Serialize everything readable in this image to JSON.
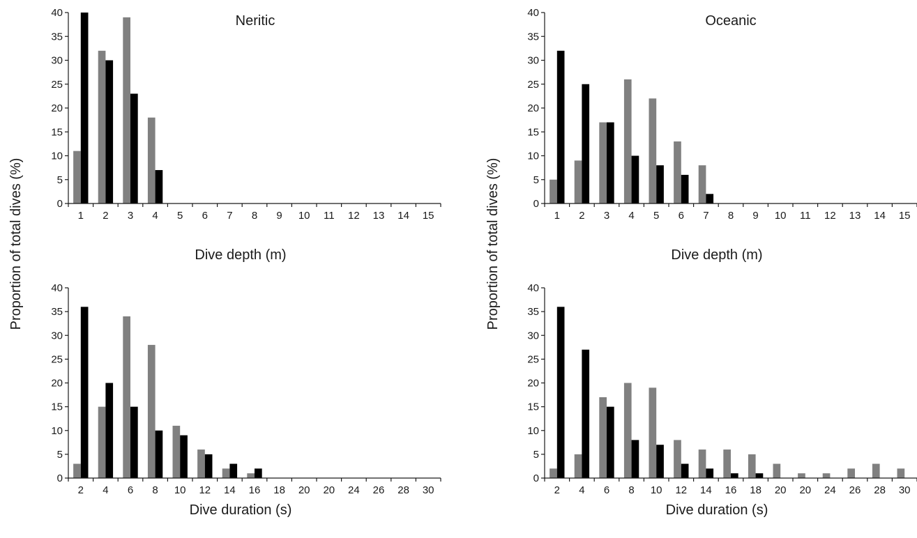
{
  "ylabel": "Proportion of total dives (%)",
  "colors": {
    "series_grey": "#808080",
    "series_black": "#000000",
    "axis": "#1a1a1a"
  },
  "chart_data": [
    {
      "type": "bar",
      "title": "Neritic",
      "xlabel": "Dive depth (m)",
      "ylabel": "Proportion of total dives (%)",
      "ylim": [
        0,
        40
      ],
      "yticks": [
        0,
        5,
        10,
        15,
        20,
        25,
        30,
        35,
        40
      ],
      "categories": [
        "1",
        "2",
        "3",
        "4",
        "5",
        "6",
        "7",
        "8",
        "9",
        "10",
        "11",
        "12",
        "13",
        "14",
        "15"
      ],
      "series": [
        {
          "color": "#808080",
          "values": [
            11,
            32,
            39,
            18,
            0,
            0,
            0,
            0,
            0,
            0,
            0,
            0,
            0,
            0,
            0
          ]
        },
        {
          "color": "#000000",
          "values": [
            40,
            30,
            23,
            7,
            0,
            0,
            0,
            0,
            0,
            0,
            0,
            0,
            0,
            0,
            0
          ]
        }
      ]
    },
    {
      "type": "bar",
      "title": "Oceanic",
      "xlabel": "Dive depth (m)",
      "ylabel": "Proportion of total dives (%)",
      "ylim": [
        0,
        40
      ],
      "yticks": [
        0,
        5,
        10,
        15,
        20,
        25,
        30,
        35,
        40
      ],
      "categories": [
        "1",
        "2",
        "3",
        "4",
        "5",
        "6",
        "7",
        "8",
        "9",
        "10",
        "11",
        "12",
        "13",
        "14",
        "15"
      ],
      "series": [
        {
          "color": "#808080",
          "values": [
            5,
            9,
            17,
            26,
            22,
            13,
            8,
            0,
            0,
            0,
            0,
            0,
            0,
            0,
            0
          ]
        },
        {
          "color": "#000000",
          "values": [
            32,
            25,
            17,
            10,
            8,
            6,
            2,
            0,
            0,
            0,
            0,
            0,
            0,
            0,
            0
          ]
        }
      ]
    },
    {
      "type": "bar",
      "title": "",
      "xlabel": "Dive duration (s)",
      "ylabel": "Proportion of total dives (%)",
      "ylim": [
        0,
        40
      ],
      "yticks": [
        0,
        5,
        10,
        15,
        20,
        25,
        30,
        35,
        40
      ],
      "categories": [
        "2",
        "4",
        "6",
        "8",
        "10",
        "12",
        "14",
        "16",
        "18",
        "20",
        "20",
        "24",
        "26",
        "28",
        "30"
      ],
      "series": [
        {
          "color": "#808080",
          "values": [
            3,
            15,
            34,
            28,
            11,
            6,
            2,
            1,
            0,
            0,
            0,
            0,
            0,
            0,
            0
          ]
        },
        {
          "color": "#000000",
          "values": [
            36,
            20,
            15,
            10,
            9,
            5,
            3,
            2,
            0,
            0,
            0,
            0,
            0,
            0,
            0
          ]
        }
      ]
    },
    {
      "type": "bar",
      "title": "",
      "xlabel": "Dive duration (s)",
      "ylabel": "Proportion of total dives (%)",
      "ylim": [
        0,
        40
      ],
      "yticks": [
        0,
        5,
        10,
        15,
        20,
        25,
        30,
        35,
        40
      ],
      "categories": [
        "2",
        "4",
        "6",
        "8",
        "10",
        "12",
        "14",
        "16",
        "18",
        "20",
        "20",
        "24",
        "26",
        "28",
        "30"
      ],
      "series": [
        {
          "color": "#808080",
          "values": [
            2,
            5,
            17,
            20,
            19,
            8,
            6,
            6,
            5,
            3,
            1,
            1,
            2,
            3,
            2
          ]
        },
        {
          "color": "#000000",
          "values": [
            36,
            27,
            15,
            8,
            7,
            3,
            2,
            1,
            1,
            0,
            0,
            0,
            0,
            0,
            0
          ]
        }
      ]
    }
  ]
}
